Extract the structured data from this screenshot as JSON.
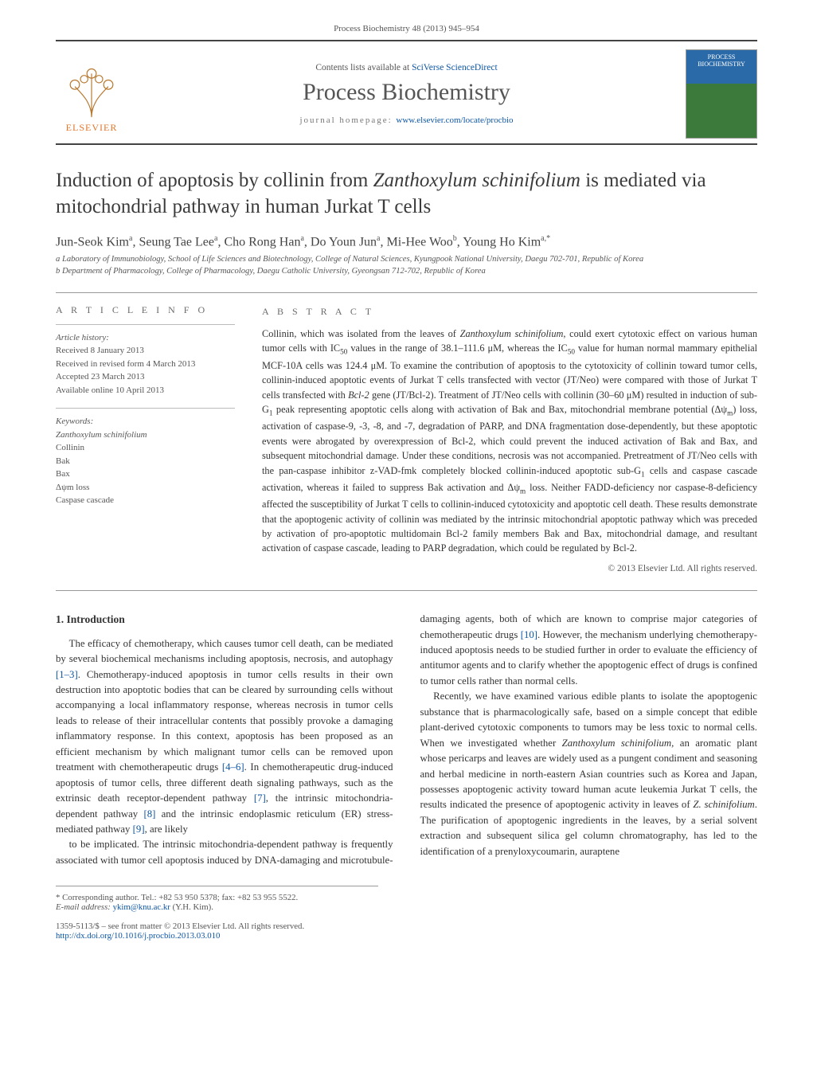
{
  "running_head": "Process Biochemistry 48 (2013) 945–954",
  "header": {
    "contents_prefix": "Contents lists available at ",
    "contents_link_text": "SciVerse ScienceDirect",
    "journal_name": "Process Biochemistry",
    "homepage_prefix": "journal homepage: ",
    "homepage_link_text": "www.elsevier.com/locate/procbio",
    "elsevier_word": "ELSEVIER",
    "cover_line1": "PROCESS",
    "cover_line2": "BIOCHEMISTRY"
  },
  "title_html": "Induction of apoptosis by collinin from <em>Zanthoxylum schinifolium</em> is mediated via mitochondrial pathway in human Jurkat T cells",
  "authors_html": "Jun-Seok Kim<sup>a</sup>, Seung Tae Lee<sup>a</sup>, Cho Rong Han<sup>a</sup>, Do Youn Jun<sup>a</sup>, Mi-Hee Woo<sup>b</sup>, Young Ho Kim<sup>a,*</sup>",
  "affiliations": [
    "a Laboratory of Immunobiology, School of Life Sciences and Biotechnology, College of Natural Sciences, Kyungpook National University, Daegu 702-701, Republic of Korea",
    "b Department of Pharmacology, College of Pharmacology, Daegu Catholic University, Gyeongsan 712-702, Republic of Korea"
  ],
  "article_info": {
    "heading": "a r t i c l e   i n f o",
    "history_label": "Article history:",
    "history": [
      "Received 8 January 2013",
      "Received in revised form 4 March 2013",
      "Accepted 23 March 2013",
      "Available online 10 April 2013"
    ],
    "keywords_label": "Keywords:",
    "keywords": [
      "Zanthoxylum schinifolium",
      "Collinin",
      "Bak",
      "Bax",
      "Δψm loss",
      "Caspase cascade"
    ]
  },
  "abstract": {
    "heading": "a b s t r a c t",
    "text_html": "Collinin, which was isolated from the leaves of <em>Zanthoxylum schinifolium</em>, could exert cytotoxic effect on various human tumor cells with IC<span class='sub'>50</span> values in the range of 38.1–111.6 μM, whereas the IC<span class='sub'>50</span> value for human normal mammary epithelial MCF-10A cells was 124.4 μM. To examine the contribution of apoptosis to the cytotoxicity of collinin toward tumor cells, collinin-induced apoptotic events of Jurkat T cells transfected with vector (JT/Neo) were compared with those of Jurkat T cells transfected with <em>Bcl-2</em> gene (JT/Bcl-2). Treatment of JT/Neo cells with collinin (30–60 μM) resulted in induction of sub-G<span class='sub'>1</span> peak representing apoptotic cells along with activation of Bak and Bax, mitochondrial membrane potential (Δ<span class='greek'>ψ</span><span class='sub'>m</span>) loss, activation of caspase-9, -3, -8, and -7, degradation of PARP, and DNA fragmentation dose-dependently, but these apoptotic events were abrogated by overexpression of Bcl-2, which could prevent the induced activation of Bak and Bax, and subsequent mitochondrial damage. Under these conditions, necrosis was not accompanied. Pretreatment of JT/Neo cells with the pan-caspase inhibitor z-VAD-fmk completely blocked collinin-induced apoptotic sub-G<span class='sub'>1</span> cells and caspase cascade activation, whereas it failed to suppress Bak activation and Δ<span class='greek'>ψ</span><span class='sub'>m</span> loss. Neither FADD-deficiency nor caspase-8-deficiency affected the susceptibility of Jurkat T cells to collinin-induced cytotoxicity and apoptotic cell death. These results demonstrate that the apoptogenic activity of collinin was mediated by the intrinsic mitochondrial apoptotic pathway which was preceded by activation of pro-apoptotic multidomain Bcl-2 family members Bak and Bax, mitochondrial damage, and resultant activation of caspase cascade, leading to PARP degradation, which could be regulated by Bcl-2.",
    "copyright": "© 2013 Elsevier Ltd. All rights reserved."
  },
  "body": {
    "section_heading": "1.  Introduction",
    "para1_html": "The efficacy of chemotherapy, which causes tumor cell death, can be mediated by several biochemical mechanisms including apoptosis, necrosis, and autophagy <a class='cite' data-name='cite-1-3' data-interactable='true'>[1–3]</a>. Chemotherapy-induced apoptosis in tumor cells results in their own destruction into apoptotic bodies that can be cleared by surrounding cells without accompanying a local inflammatory response, whereas necrosis in tumor cells leads to release of their intracellular contents that possibly provoke a damaging inflammatory response. In this context, apoptosis has been proposed as an efficient mechanism by which malignant tumor cells can be removed upon treatment with chemotherapeutic drugs <a class='cite' data-name='cite-4-6' data-interactable='true'>[4–6]</a>. In chemotherapeutic drug-induced apoptosis of tumor cells, three different death signaling pathways, such as the extrinsic death receptor-dependent pathway <a class='cite' data-name='cite-7' data-interactable='true'>[7]</a>, the intrinsic mitochondria-dependent pathway <a class='cite' data-name='cite-8' data-interactable='true'>[8]</a> and the intrinsic endoplasmic reticulum (ER) stress-mediated pathway <a class='cite' data-name='cite-9' data-interactable='true'>[9]</a>, are likely",
    "para2_html": "to be implicated. The intrinsic mitochondria-dependent pathway is frequently associated with tumor cell apoptosis induced by DNA-damaging and microtubule-damaging agents, both of which are known to comprise major categories of chemotherapeutic drugs <a class='cite' data-name='cite-10' data-interactable='true'>[10]</a>. However, the mechanism underlying chemotherapy-induced apoptosis needs to be studied further in order to evaluate the efficiency of antitumor agents and to clarify whether the apoptogenic effect of drugs is confined to tumor cells rather than normal cells.",
    "para3_html": "Recently, we have examined various edible plants to isolate the apoptogenic substance that is pharmacologically safe, based on a simple concept that edible plant-derived cytotoxic components to tumors may be less toxic to normal cells. When we investigated whether <em>Zanthoxylum schinifolium</em>, an aromatic plant whose pericarps and leaves are widely used as a pungent condiment and seasoning and herbal medicine in north-eastern Asian countries such as Korea and Japan, possesses apoptogenic activity toward human acute leukemia Jurkat T cells, the results indicated the presence of apoptogenic activity in leaves of <em>Z. schinifolium</em>. The purification of apoptogenic ingredients in the leaves, by a serial solvent extraction and subsequent silica gel column chromatography, has led to the identification of a prenyloxycoumarin, auraptene"
  },
  "footnotes": {
    "corr": "* Corresponding author. Tel.: +82 53 950 5378; fax: +82 53 955 5522.",
    "email_label": "E-mail address: ",
    "email": "ykim@knu.ac.kr",
    "email_tail": " (Y.H. Kim)."
  },
  "bottom": {
    "front_matter": "1359-5113/$ – see front matter © 2013 Elsevier Ltd. All rights reserved.",
    "doi_text": "http://dx.doi.org/10.1016/j.procbio.2013.03.010"
  },
  "colors": {
    "link": "#0c56a5",
    "text": "#333333",
    "muted": "#555555",
    "rule": "#444444",
    "elsevier_orange": "#e2762b"
  }
}
